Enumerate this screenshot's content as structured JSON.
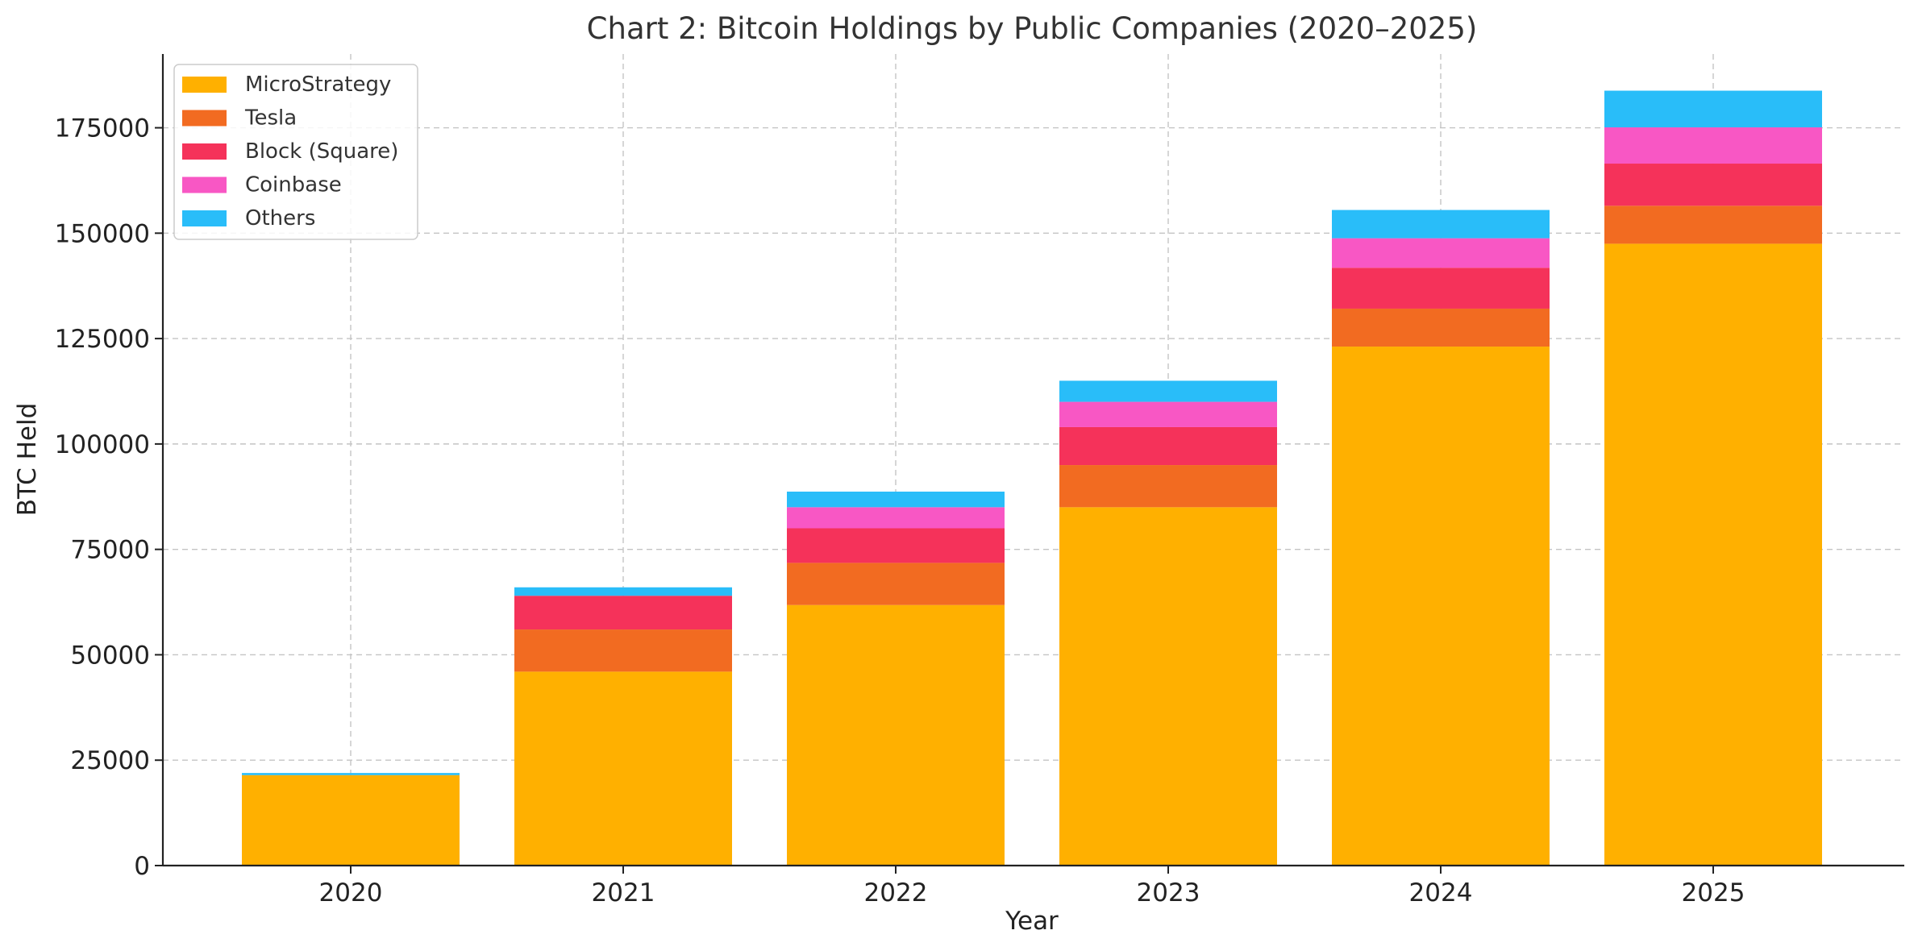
{
  "chart_data": {
    "type": "bar",
    "stacked": true,
    "title": "Chart 2: Bitcoin Holdings by Public Companies (2020–2025)",
    "xlabel": "Year",
    "ylabel": "BTC Held",
    "categories": [
      "2020",
      "2021",
      "2022",
      "2023",
      "2024",
      "2025"
    ],
    "series": [
      {
        "name": "MicroStrategy",
        "color": "#FFB000",
        "values": [
          21454,
          46000,
          61800,
          85000,
          123100,
          147500
        ]
      },
      {
        "name": "Tesla",
        "color": "#F26B21",
        "values": [
          0,
          10000,
          10000,
          10000,
          9000,
          9000
        ]
      },
      {
        "name": "Block (Square)",
        "color": "#F5325A",
        "values": [
          0,
          8000,
          8200,
          9000,
          9700,
          10000
        ]
      },
      {
        "name": "Coinbase",
        "color": "#F857C4",
        "values": [
          0,
          0,
          5000,
          6000,
          7000,
          8600
        ]
      },
      {
        "name": "Others",
        "color": "#29BDF9",
        "values": [
          500,
          2000,
          3700,
          5000,
          6700,
          8700
        ]
      }
    ],
    "ylim": [
      0,
      192500
    ],
    "yticks": [
      "0",
      "25000",
      "50000",
      "75000",
      "100000",
      "125000",
      "150000",
      "175000"
    ],
    "ytick_values": [
      0,
      25000,
      50000,
      75000,
      100000,
      125000,
      150000,
      175000
    ],
    "grid": true,
    "legend_position": "top-left"
  }
}
